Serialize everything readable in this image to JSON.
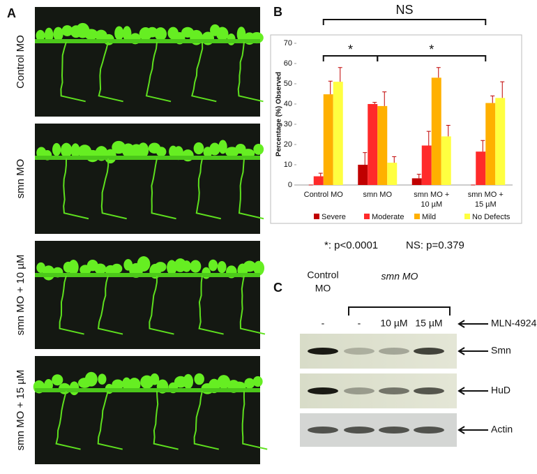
{
  "panel_a": {
    "label": "A",
    "rows": [
      "Control MO",
      "smn MO",
      "smn MO + 10 µM",
      "smn MO + 15 µM"
    ]
  },
  "panel_b_label": "B",
  "chart_data": {
    "type": "bar",
    "y_label": "Percentage (%) Observed",
    "categories": [
      "Control MO",
      "smn MO",
      "smn MO +\n10 µM",
      "smn MO +\n15 µM"
    ],
    "series": [
      {
        "name": "Severe",
        "color": "#c00000",
        "values": [
          0,
          10,
          3.3,
          0
        ],
        "errors": [
          0,
          6,
          2,
          0
        ]
      },
      {
        "name": "Moderate",
        "color": "#ff2a2a",
        "values": [
          4.3,
          40,
          19.5,
          16.5
        ],
        "errors": [
          1.5,
          0.8,
          7,
          5.5
        ]
      },
      {
        "name": "Mild",
        "color": "#ffb000",
        "values": [
          44.8,
          39,
          53,
          40.5
        ],
        "errors": [
          6.5,
          7,
          5,
          3.5
        ]
      },
      {
        "name": "No Defects",
        "color": "#ffff40",
        "values": [
          51,
          11,
          24,
          43
        ],
        "errors": [
          7,
          3,
          5.5,
          8
        ]
      }
    ],
    "ylim": [
      0,
      70
    ],
    "yticks": [
      0,
      10,
      20,
      30,
      40,
      50,
      60,
      70
    ],
    "grid": false,
    "legend": "bottom",
    "annotations": [
      "NS",
      "*",
      "*"
    ],
    "footnotes": [
      "*:  p<0.0001",
      "NS: p=0.379"
    ]
  },
  "panel_c": {
    "label": "C",
    "header_control": [
      "Control",
      "MO"
    ],
    "header_smn": "smn MO",
    "lanes": [
      "-",
      "-",
      "10 µM",
      "15 µM"
    ],
    "treatment": "MLN-4924",
    "blots": [
      "Smn",
      "HuD",
      "Actin"
    ]
  }
}
